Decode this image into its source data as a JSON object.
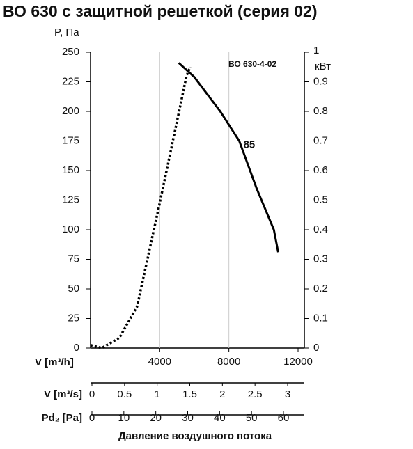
{
  "chart_data": {
    "type": "line",
    "title": "ВО 630 с защитной решеткой (серия 02)",
    "y_label": "P, Па",
    "y2_label": "кВт",
    "x_label": "V [m³/h]",
    "footer": "Давление воздушного потока",
    "annotations": [
      {
        "text": "85",
        "x": 8600,
        "y": 175
      }
    ],
    "xlim": [
      0,
      12000
    ],
    "xticks": [
      4000,
      8000,
      12000
    ],
    "ylim": [
      0,
      250
    ],
    "yticks": [
      0,
      25,
      50,
      75,
      100,
      125,
      150,
      175,
      200,
      225,
      250
    ],
    "y2lim": [
      0,
      1
    ],
    "y2ticks": [
      0,
      0.1,
      0.2,
      0.3,
      0.4,
      0.5,
      0.6,
      0.7,
      0.8,
      0.9,
      1
    ],
    "grid": "x",
    "series": [
      {
        "name": "ВО 630-4-02",
        "color": "#000000",
        "dash": "solid",
        "x": [
          5100,
          6000,
          7500,
          8600,
          9600,
          10600,
          10850
        ],
        "values": [
          241,
          229,
          200,
          175,
          135,
          100,
          81
        ]
      },
      {
        "color": "#000000",
        "dash": "dotted",
        "axis": "y2",
        "x": [
          0,
          650,
          1670,
          2690,
          4000,
          4940,
          5550,
          5760
        ],
        "values": [
          0.01,
          0,
          0.035,
          0.14,
          0.49,
          0.75,
          0.92,
          0.95
        ]
      }
    ],
    "extra_axes": [
      {
        "label": "V [m³/s]",
        "xlim": [
          0,
          3
        ],
        "xticks": [
          0,
          0.5,
          1,
          1.5,
          2,
          2.5,
          3
        ]
      },
      {
        "label": "Pd₂ [Pa]",
        "xlim": [
          0,
          60
        ],
        "xticks": [
          0,
          10,
          20,
          30,
          40,
          50,
          60
        ]
      }
    ]
  }
}
